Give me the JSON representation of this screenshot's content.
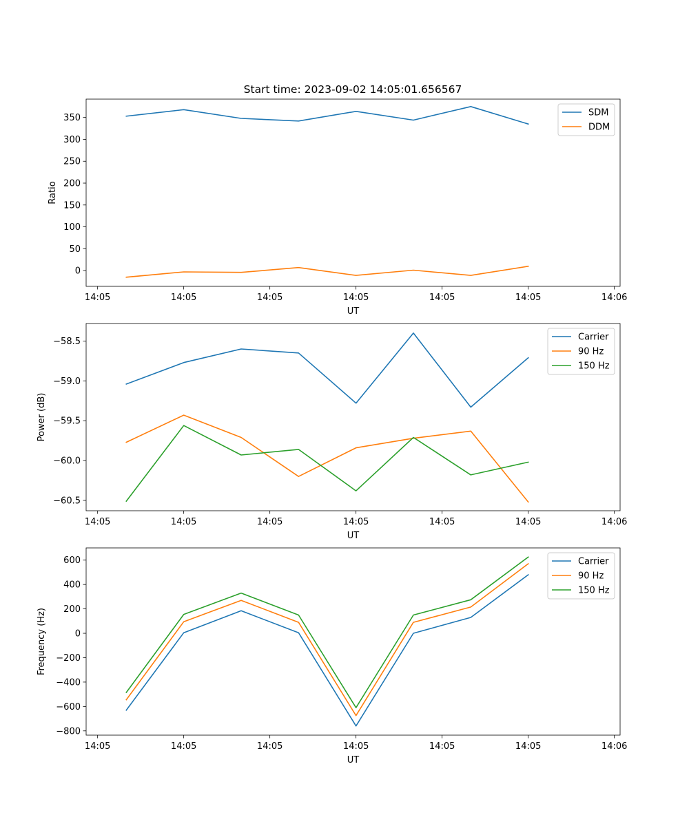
{
  "figure": {
    "title": "Start time: 2023-09-02 14:05:01.656567"
  },
  "chart_data": [
    {
      "type": "line",
      "title": "Start time: 2023-09-02 14:05:01.656567",
      "xlabel": "UT",
      "ylabel": "Ratio",
      "x": [
        1,
        2,
        3,
        4,
        5,
        6,
        7,
        8
      ],
      "xlim": [
        0.3,
        9.6
      ],
      "x_ticks": [
        0.5,
        2,
        3.5,
        5,
        6.5,
        8,
        9.5
      ],
      "x_tick_labels": [
        "14:05",
        "14:05",
        "14:05",
        "14:05",
        "14:05",
        "14:05",
        "14:06"
      ],
      "ylim": [
        -36,
        392
      ],
      "y_ticks": [
        0,
        50,
        100,
        150,
        200,
        250,
        300,
        350
      ],
      "y_tick_labels": [
        "0",
        "50",
        "100",
        "150",
        "200",
        "250",
        "300",
        "350"
      ],
      "legend_position": "top-right",
      "series": [
        {
          "name": "SDM",
          "color": "#1f77b4",
          "values": [
            353,
            368,
            348,
            342,
            364,
            344,
            375,
            335
          ]
        },
        {
          "name": "DDM",
          "color": "#ff7f0e",
          "values": [
            -15,
            -3,
            -4,
            7,
            -11,
            1,
            -11,
            10
          ]
        }
      ]
    },
    {
      "type": "line",
      "title": "",
      "xlabel": "UT",
      "ylabel": "Power (dB)",
      "x": [
        1,
        2,
        3,
        4,
        5,
        6,
        7,
        8
      ],
      "xlim": [
        0.3,
        9.6
      ],
      "x_ticks": [
        0.5,
        2,
        3.5,
        5,
        6.5,
        8,
        9.5
      ],
      "x_tick_labels": [
        "14:05",
        "14:05",
        "14:05",
        "14:05",
        "14:05",
        "14:05",
        "14:06"
      ],
      "ylim": [
        -60.63,
        -58.28
      ],
      "y_ticks": [
        -60.5,
        -60.0,
        -59.5,
        -59.0,
        -58.5
      ],
      "y_tick_labels": [
        "−60.5",
        "−60.0",
        "−59.5",
        "−59.0",
        "−58.5"
      ],
      "legend_position": "top-right",
      "series": [
        {
          "name": "Carrier",
          "color": "#1f77b4",
          "values": [
            -59.04,
            -58.77,
            -58.6,
            -58.65,
            -59.28,
            -58.4,
            -59.33,
            -58.71
          ]
        },
        {
          "name": "90 Hz",
          "color": "#ff7f0e",
          "values": [
            -59.77,
            -59.43,
            -59.71,
            -60.2,
            -59.84,
            -59.72,
            -59.63,
            -60.52
          ]
        },
        {
          "name": "150 Hz",
          "color": "#2ca02c",
          "values": [
            -60.51,
            -59.56,
            -59.93,
            -59.86,
            -60.38,
            -59.71,
            -60.18,
            -60.02
          ]
        }
      ]
    },
    {
      "type": "line",
      "title": "",
      "xlabel": "UT",
      "ylabel": "Frequency (Hz)",
      "x": [
        1,
        2,
        3,
        4,
        5,
        6,
        7,
        8
      ],
      "xlim": [
        0.3,
        9.6
      ],
      "x_ticks": [
        0.5,
        2,
        3.5,
        5,
        6.5,
        8,
        9.5
      ],
      "x_tick_labels": [
        "14:05",
        "14:05",
        "14:05",
        "14:05",
        "14:05",
        "14:05",
        "14:06"
      ],
      "ylim": [
        -835,
        700
      ],
      "y_ticks": [
        -800,
        -600,
        -400,
        -200,
        0,
        200,
        400,
        600
      ],
      "y_tick_labels": [
        "−800",
        "−600",
        "−400",
        "−200",
        "0",
        "200",
        "400",
        "600"
      ],
      "legend_position": "top-right",
      "series": [
        {
          "name": "Carrier",
          "color": "#1f77b4",
          "values": [
            -630,
            5,
            185,
            5,
            -760,
            0,
            130,
            480
          ]
        },
        {
          "name": "90 Hz",
          "color": "#ff7f0e",
          "values": [
            -545,
            95,
            270,
            90,
            -675,
            90,
            215,
            570
          ]
        },
        {
          "name": "150 Hz",
          "color": "#2ca02c",
          "values": [
            -485,
            155,
            330,
            150,
            -610,
            150,
            275,
            625
          ]
        }
      ]
    }
  ]
}
